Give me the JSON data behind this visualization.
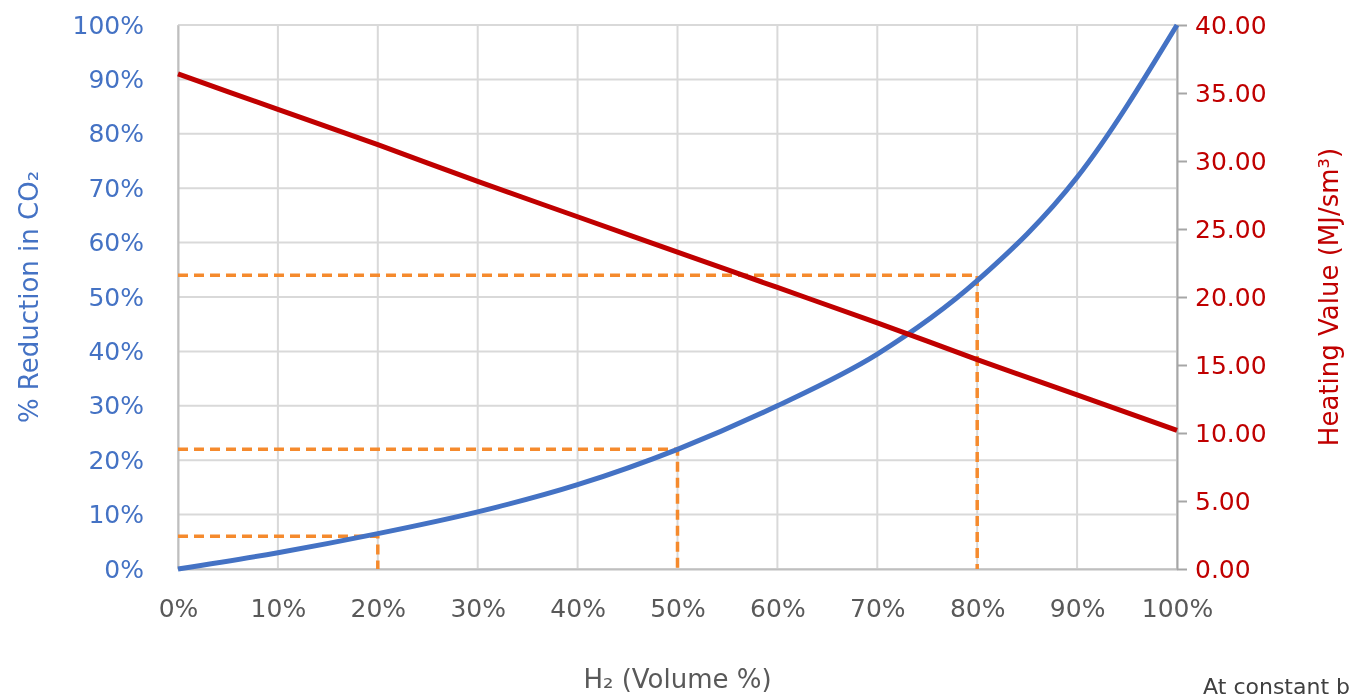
{
  "chart_data": {
    "type": "line",
    "xlabel": "H₂ (Volume %)",
    "ylabel": "% Reduction in CO₂",
    "y2label": "Heating Value (MJ/sm³)",
    "annotations": [
      "At constant b"
    ],
    "xlim": [
      0,
      100
    ],
    "ylim": [
      0,
      100
    ],
    "y2lim": [
      0,
      40
    ],
    "xticks": [
      {
        "value": 0,
        "label": "0%"
      },
      {
        "value": 10,
        "label": "10%"
      },
      {
        "value": 20,
        "label": "20%"
      },
      {
        "value": 30,
        "label": "30%"
      },
      {
        "value": 40,
        "label": "40%"
      },
      {
        "value": 50,
        "label": "50%"
      },
      {
        "value": 60,
        "label": "60%"
      },
      {
        "value": 70,
        "label": "70%"
      },
      {
        "value": 80,
        "label": "80%"
      },
      {
        "value": 90,
        "label": "90%"
      },
      {
        "value": 100,
        "label": "100%"
      }
    ],
    "yticks": [
      {
        "value": 0,
        "label": "0%"
      },
      {
        "value": 10,
        "label": "10%"
      },
      {
        "value": 20,
        "label": "20%"
      },
      {
        "value": 30,
        "label": "30%"
      },
      {
        "value": 40,
        "label": "40%"
      },
      {
        "value": 50,
        "label": "50%"
      },
      {
        "value": 60,
        "label": "60%"
      },
      {
        "value": 70,
        "label": "70%"
      },
      {
        "value": 80,
        "label": "80%"
      },
      {
        "value": 90,
        "label": "90%"
      },
      {
        "value": 100,
        "label": "100%"
      }
    ],
    "y2ticks": [
      {
        "value": 0,
        "label": "0.00"
      },
      {
        "value": 5,
        "label": "5.00"
      },
      {
        "value": 10,
        "label": "10.00"
      },
      {
        "value": 15,
        "label": "15.00"
      },
      {
        "value": 20,
        "label": "20.00"
      },
      {
        "value": 25,
        "label": "25.00"
      },
      {
        "value": 30,
        "label": "30.00"
      },
      {
        "value": 35,
        "label": "35.00"
      },
      {
        "value": 40,
        "label": "40.00"
      }
    ],
    "grid": true,
    "line_style": "solid",
    "marker": "none",
    "series": [
      {
        "color": "#4472c4",
        "x": [
          0,
          10,
          20,
          30,
          40,
          50,
          60,
          70,
          80,
          90,
          100
        ],
        "values": [
          0,
          3,
          6.5,
          10.5,
          15.5,
          22,
          30,
          39.5,
          53,
          72,
          100
        ]
      },
      {
        "color": "#c00000",
        "axis": "y2",
        "x": [
          0,
          10,
          20,
          30,
          40,
          50,
          60,
          70,
          80,
          90,
          100
        ],
        "values": [
          36.4,
          33.8,
          31.2,
          28.5,
          25.9,
          23.3,
          20.7,
          18.1,
          15.4,
          12.8,
          10.2
        ]
      },
      {
        "color": "#f58a2d",
        "line_style": "dashed",
        "x": [
          0,
          20,
          20
        ],
        "values": [
          6,
          6,
          0
        ]
      },
      {
        "color": "#f58a2d",
        "line_style": "dashed",
        "x": [
          0,
          50,
          50
        ],
        "values": [
          22,
          22,
          0
        ]
      },
      {
        "color": "#f58a2d",
        "line_style": "dashed",
        "x": [
          0,
          80,
          80
        ],
        "values": [
          54,
          54,
          0
        ]
      }
    ]
  }
}
